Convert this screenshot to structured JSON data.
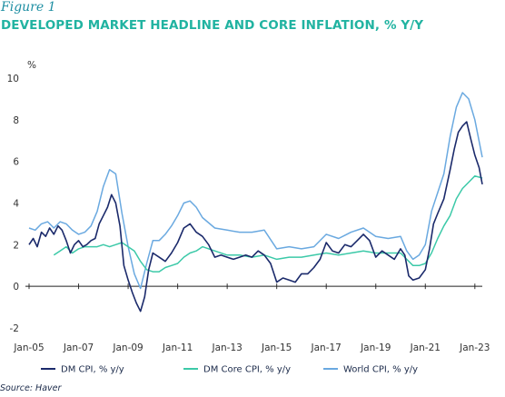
{
  "figure_label": "Figure 1",
  "title": "DEVELOPED MARKET HEADLINE AND CORE INFLATION, % Y/Y",
  "source": "Source: Haver",
  "colors": {
    "dm_cpi": "#1b2a6b",
    "dm_core": "#3cc9a8",
    "world_cpi": "#6aa9e0",
    "baseline": "#222222"
  },
  "chart_data": {
    "type": "line",
    "ylabel": "%",
    "ylim": [
      -2,
      10
    ],
    "yticks": [
      "-2",
      "0",
      "2",
      "4",
      "6",
      "8",
      "10"
    ],
    "xlim": [
      2005.0,
      2023.3
    ],
    "xticks": [
      "Jan-05",
      "Jan-07",
      "Jan-09",
      "Jan-11",
      "Jan-13",
      "Jan-15",
      "Jan-17",
      "Jan-19",
      "Jan-21",
      "Jan-23"
    ],
    "grid": false,
    "legend_position": "bottom",
    "series": [
      {
        "name": "DM CPI, % y/y",
        "color_key": "dm_cpi",
        "x": [
          2005.0,
          2005.17,
          2005.33,
          2005.5,
          2005.67,
          2005.83,
          2006.0,
          2006.17,
          2006.33,
          2006.5,
          2006.67,
          2006.83,
          2007.0,
          2007.17,
          2007.33,
          2007.5,
          2007.67,
          2007.83,
          2008.0,
          2008.17,
          2008.33,
          2008.5,
          2008.67,
          2008.83,
          2009.0,
          2009.17,
          2009.33,
          2009.5,
          2009.67,
          2009.83,
          2010.0,
          2010.25,
          2010.5,
          2010.75,
          2011.0,
          2011.25,
          2011.5,
          2011.75,
          2012.0,
          2012.25,
          2012.5,
          2012.75,
          2013.0,
          2013.25,
          2013.5,
          2013.75,
          2014.0,
          2014.25,
          2014.5,
          2014.75,
          2015.0,
          2015.25,
          2015.5,
          2015.75,
          2016.0,
          2016.25,
          2016.5,
          2016.75,
          2017.0,
          2017.25,
          2017.5,
          2017.75,
          2018.0,
          2018.25,
          2018.5,
          2018.75,
          2019.0,
          2019.25,
          2019.5,
          2019.75,
          2020.0,
          2020.17,
          2020.33,
          2020.5,
          2020.75,
          2021.0,
          2021.17,
          2021.33,
          2021.5,
          2021.75,
          2022.0,
          2022.17,
          2022.33,
          2022.5,
          2022.67,
          2022.83,
          2023.0,
          2023.17,
          2023.3
        ],
        "values": [
          2.0,
          2.3,
          1.9,
          2.6,
          2.4,
          2.8,
          2.5,
          2.9,
          2.7,
          2.2,
          1.6,
          2.0,
          2.2,
          1.9,
          2.0,
          2.2,
          2.3,
          3.0,
          3.4,
          3.8,
          4.4,
          4.0,
          2.9,
          1.0,
          0.3,
          -0.3,
          -0.8,
          -1.2,
          -0.5,
          0.8,
          1.6,
          1.4,
          1.2,
          1.6,
          2.1,
          2.8,
          3.0,
          2.6,
          2.4,
          2.0,
          1.4,
          1.5,
          1.4,
          1.3,
          1.4,
          1.5,
          1.4,
          1.7,
          1.5,
          1.1,
          0.2,
          0.4,
          0.3,
          0.2,
          0.6,
          0.6,
          0.9,
          1.3,
          2.1,
          1.7,
          1.6,
          2.0,
          1.9,
          2.2,
          2.5,
          2.2,
          1.4,
          1.7,
          1.5,
          1.3,
          1.8,
          1.5,
          0.5,
          0.3,
          0.4,
          0.8,
          1.8,
          3.0,
          3.5,
          4.2,
          5.6,
          6.6,
          7.4,
          7.7,
          7.9,
          7.1,
          6.3,
          5.7,
          4.9
        ]
      },
      {
        "name": "DM Core CPI, % y/y",
        "color_key": "dm_core",
        "x": [
          2006.0,
          2006.25,
          2006.5,
          2006.75,
          2007.0,
          2007.25,
          2007.5,
          2007.75,
          2008.0,
          2008.25,
          2008.5,
          2008.75,
          2009.0,
          2009.25,
          2009.5,
          2009.75,
          2010.0,
          2010.25,
          2010.5,
          2010.75,
          2011.0,
          2011.25,
          2011.5,
          2011.75,
          2012.0,
          2012.5,
          2013.0,
          2013.5,
          2014.0,
          2014.5,
          2015.0,
          2015.5,
          2016.0,
          2016.5,
          2017.0,
          2017.5,
          2018.0,
          2018.5,
          2019.0,
          2019.5,
          2020.0,
          2020.25,
          2020.5,
          2020.75,
          2021.0,
          2021.25,
          2021.5,
          2021.75,
          2022.0,
          2022.25,
          2022.5,
          2022.75,
          2023.0,
          2023.3
        ],
        "values": [
          1.5,
          1.7,
          1.9,
          1.6,
          1.8,
          1.9,
          1.9,
          1.9,
          2.0,
          1.9,
          2.0,
          2.1,
          1.9,
          1.7,
          1.2,
          0.8,
          0.7,
          0.7,
          0.9,
          1.0,
          1.1,
          1.4,
          1.6,
          1.7,
          1.9,
          1.7,
          1.5,
          1.5,
          1.4,
          1.5,
          1.3,
          1.4,
          1.4,
          1.5,
          1.6,
          1.5,
          1.6,
          1.7,
          1.6,
          1.6,
          1.6,
          1.3,
          1.0,
          1.0,
          1.1,
          1.6,
          2.3,
          2.9,
          3.4,
          4.2,
          4.7,
          5.0,
          5.3,
          5.2
        ]
      },
      {
        "name": "World CPI, % y/y",
        "color_key": "world_cpi",
        "x": [
          2005.0,
          2005.25,
          2005.5,
          2005.75,
          2006.0,
          2006.25,
          2006.5,
          2006.75,
          2007.0,
          2007.25,
          2007.5,
          2007.75,
          2008.0,
          2008.25,
          2008.5,
          2008.75,
          2009.0,
          2009.25,
          2009.5,
          2009.75,
          2010.0,
          2010.25,
          2010.5,
          2010.75,
          2011.0,
          2011.25,
          2011.5,
          2011.75,
          2012.0,
          2012.5,
          2013.0,
          2013.5,
          2014.0,
          2014.5,
          2015.0,
          2015.5,
          2016.0,
          2016.5,
          2017.0,
          2017.5,
          2018.0,
          2018.5,
          2019.0,
          2019.5,
          2020.0,
          2020.25,
          2020.5,
          2020.75,
          2021.0,
          2021.25,
          2021.5,
          2021.75,
          2022.0,
          2022.25,
          2022.5,
          2022.75,
          2023.0,
          2023.3
        ],
        "values": [
          2.8,
          2.7,
          3.0,
          3.1,
          2.8,
          3.1,
          3.0,
          2.7,
          2.5,
          2.6,
          2.9,
          3.6,
          4.8,
          5.6,
          5.4,
          3.5,
          1.9,
          0.6,
          -0.1,
          1.1,
          2.2,
          2.2,
          2.5,
          2.9,
          3.4,
          4.0,
          4.1,
          3.8,
          3.3,
          2.8,
          2.7,
          2.6,
          2.6,
          2.7,
          1.8,
          1.9,
          1.8,
          1.9,
          2.5,
          2.3,
          2.6,
          2.8,
          2.4,
          2.3,
          2.4,
          1.7,
          1.3,
          1.5,
          2.0,
          3.6,
          4.5,
          5.4,
          7.2,
          8.6,
          9.3,
          9.0,
          8.0,
          6.2
        ]
      }
    ]
  }
}
